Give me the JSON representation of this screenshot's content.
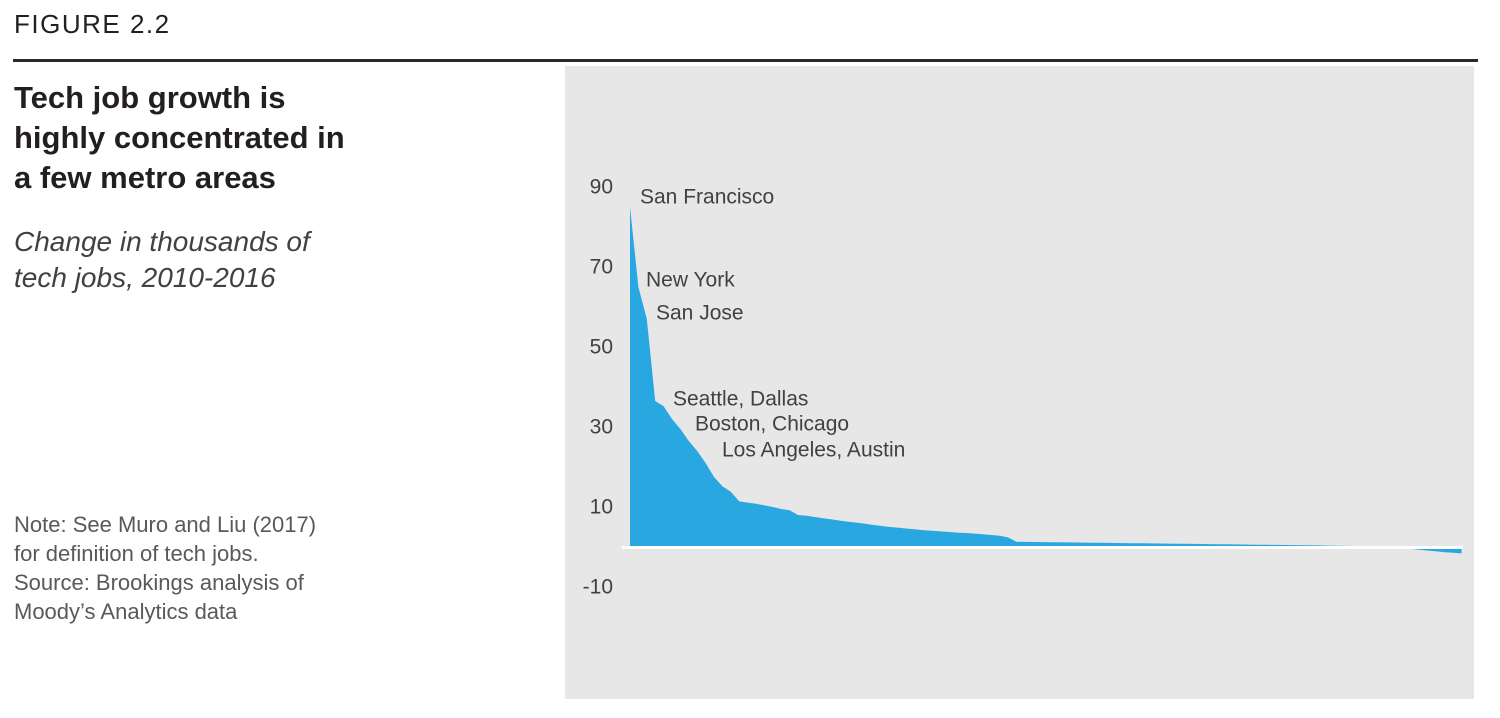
{
  "figure_label": "FIGURE 2.2",
  "title_lines": [
    "Tech job growth is",
    "highly concentrated in",
    "a few metro areas"
  ],
  "subtitle_lines": [
    "Change in thousands of",
    "tech jobs, 2010-2016"
  ],
  "note_lines": [
    "Note: See Muro and Liu (2017)",
    "for definition of tech jobs.",
    "Source: Brookings analysis of",
    "Moody’s Analytics data"
  ],
  "colors": {
    "area": "#29a7e0",
    "panel_bg": "#e7e7e8",
    "rule": "#2b2a2b",
    "title_text": "#231f20",
    "note_text": "#58595b",
    "axis_text": "#414042",
    "baseline": "#ffffff"
  },
  "chart_data": {
    "type": "area",
    "title": "Tech job growth is highly concentrated in a few metro areas",
    "subtitle": "Change in thousands of tech jobs, 2010-2016",
    "ylabel": "Change in thousands of tech jobs",
    "ylim": [
      -30,
      104
    ],
    "yticks": [
      90,
      70,
      50,
      30,
      10,
      -10
    ],
    "baseline": 0,
    "grid": false,
    "legend": false,
    "n_points": 100,
    "x_description": "metro areas ranked from largest to smallest change",
    "annotations": [
      {
        "label": "San Francisco",
        "approx_value": 85
      },
      {
        "label": "New York",
        "approx_value": 65
      },
      {
        "label": "San Jose",
        "approx_value": 57
      },
      {
        "label": "Seattle, Dallas",
        "approx_value": 36
      },
      {
        "label": "Boston, Chicago",
        "approx_value": 29
      },
      {
        "label": "Los Angeles, Austin",
        "approx_value": 21
      }
    ],
    "series": [
      {
        "name": "Change in thousands of tech jobs, 2010-2016",
        "values": [
          85,
          65,
          57,
          36.5,
          35.2,
          32,
          29.5,
          26.5,
          24,
          21,
          17.5,
          15.2,
          13.8,
          11.4,
          11.1,
          10.8,
          10.4,
          10,
          9.5,
          9.2,
          8,
          7.8,
          7.5,
          7.2,
          6.9,
          6.6,
          6.3,
          6.1,
          5.8,
          5.5,
          5.25,
          5,
          4.8,
          4.6,
          4.4,
          4.2,
          4.05,
          3.9,
          3.75,
          3.6,
          3.5,
          3.35,
          3.2,
          3,
          2.8,
          2.4,
          1.3,
          1.28,
          1.25,
          1.22,
          1.2,
          1.17,
          1.15,
          1.12,
          1.1,
          1.07,
          1.05,
          1.02,
          1,
          0.97,
          0.95,
          0.92,
          0.9,
          0.87,
          0.85,
          0.82,
          0.8,
          0.77,
          0.75,
          0.72,
          0.7,
          0.67,
          0.65,
          0.62,
          0.6,
          0.57,
          0.55,
          0.52,
          0.5,
          0.47,
          0.45,
          0.42,
          0.4,
          0.36,
          0.32,
          0.28,
          0.24,
          0.2,
          0.15,
          0.1,
          0,
          -0.15,
          -0.3,
          -0.5,
          -0.7,
          -0.9,
          -1.1,
          -1.3,
          -1.45,
          -1.6
        ]
      }
    ]
  }
}
